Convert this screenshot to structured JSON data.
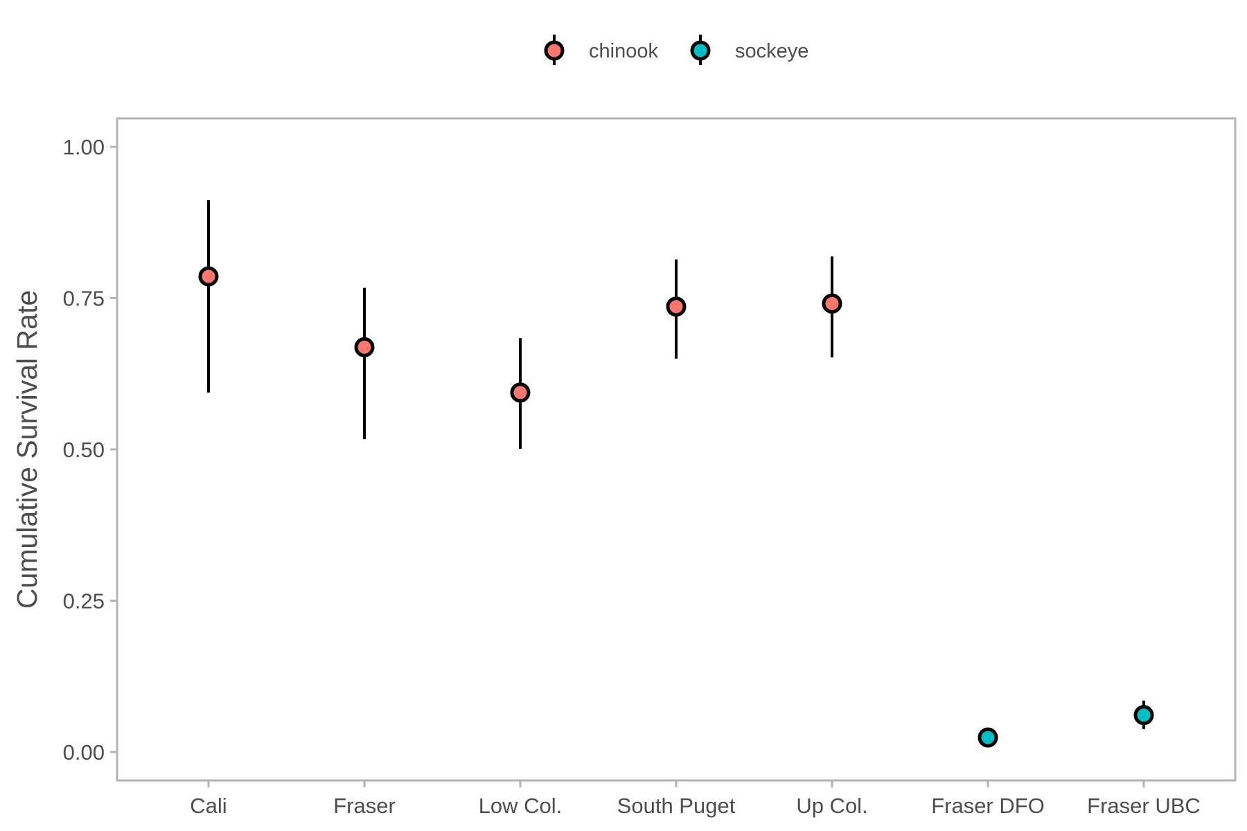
{
  "chart_data": {
    "type": "scatter",
    "title": "",
    "xlabel": "",
    "ylabel": "Cumulative Survival Rate",
    "categories": [
      "Cali",
      "Fraser",
      "Low Col.",
      "South Puget",
      "Up Col.",
      "Fraser DFO",
      "Fraser UBC"
    ],
    "ylim": [
      -0.047,
      1.047
    ],
    "yticks": [
      {
        "value": 0.0,
        "label": "0.00"
      },
      {
        "value": 0.25,
        "label": "0.25"
      },
      {
        "value": 0.5,
        "label": "0.50"
      },
      {
        "value": 0.75,
        "label": "0.75"
      },
      {
        "value": 1.0,
        "label": "1.00"
      }
    ],
    "grid": false,
    "legend_position": "top",
    "series": [
      {
        "name": "chinook",
        "color": "#F8766D",
        "points": [
          {
            "category": "Cali",
            "y": 0.786,
            "lower": 0.594,
            "upper": 0.912
          },
          {
            "category": "Fraser",
            "y": 0.669,
            "lower": 0.517,
            "upper": 0.767
          },
          {
            "category": "Low Col.",
            "y": 0.594,
            "lower": 0.501,
            "upper": 0.684
          },
          {
            "category": "South Puget",
            "y": 0.736,
            "lower": 0.65,
            "upper": 0.814
          },
          {
            "category": "Up Col.",
            "y": 0.741,
            "lower": 0.652,
            "upper": 0.819
          }
        ]
      },
      {
        "name": "sockeye",
        "color": "#00BFC4",
        "points": [
          {
            "category": "Fraser DFO",
            "y": 0.024,
            "lower": 0.022,
            "upper": 0.027
          },
          {
            "category": "Fraser UBC",
            "y": 0.061,
            "lower": 0.038,
            "upper": 0.085
          }
        ]
      }
    ]
  }
}
